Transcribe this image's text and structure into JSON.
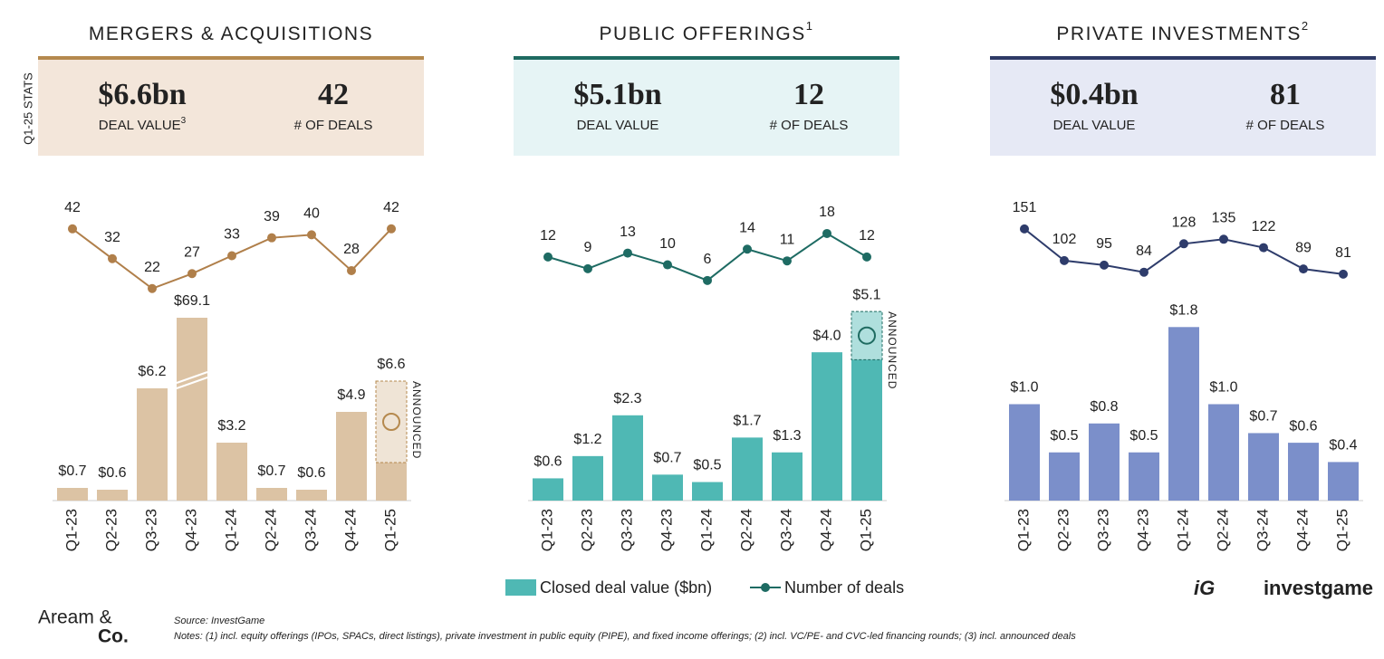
{
  "side_label": "Q1-25 STATS",
  "panels": [
    {
      "title": "MERGERS & ACQUISITIONS",
      "rule_color": "#b5894e",
      "box_color": "#f3e6da",
      "stats": {
        "value": "$6.6bn",
        "value_label": "DEAL VALUE",
        "value_note": "3",
        "deals": "42",
        "deals_label": "# OF DEALS"
      }
    },
    {
      "title": "PUBLIC OFFERINGS",
      "note": "1",
      "rule_color": "#1f6b61",
      "box_color": "#e6f4f5",
      "stats": {
        "value": "$5.1bn",
        "value_label": "DEAL VALUE",
        "deals": "12",
        "deals_label": "# OF DEALS"
      }
    },
    {
      "title": "PRIVATE INVESTMENTS",
      "note": "2",
      "rule_color": "#2e3a66",
      "box_color": "#e6e9f5",
      "stats": {
        "value": "$0.4bn",
        "value_label": "DEAL VALUE",
        "deals": "81",
        "deals_label": "# OF DEALS"
      }
    }
  ],
  "chart_data": [
    {
      "type": "combo",
      "categories": [
        "Q1-23",
        "Q2-23",
        "Q3-23",
        "Q4-23",
        "Q1-24",
        "Q2-24",
        "Q3-24",
        "Q4-24",
        "Q1-25"
      ],
      "series": [
        {
          "type": "bar",
          "color": "#dcc3a4",
          "values": [
            0.7,
            0.6,
            6.2,
            69.1,
            3.2,
            0.7,
            0.6,
            4.9,
            6.6
          ],
          "value_labels": [
            "$0.7",
            "$0.6",
            "$6.2",
            "$69.1",
            "$3.2",
            "$0.7",
            "$0.6",
            "$4.9",
            "$6.6"
          ]
        },
        {
          "type": "line",
          "axis": "y2",
          "color": "#b07f4a",
          "values": [
            42,
            32,
            22,
            27,
            33,
            39,
            40,
            28,
            42
          ]
        }
      ],
      "announced": {
        "label": "ANNOUNCED",
        "color": "#b5894e",
        "values": [
          null,
          null,
          null,
          null,
          null,
          null,
          null,
          null,
          4.5
        ]
      },
      "ylim": [
        0,
        69.65
      ],
      "ybreak": [
        6.5,
        65.5
      ],
      "y2lim": [
        9.5,
        58
      ]
    },
    {
      "type": "combo",
      "categories": [
        "Q1-23",
        "Q2-23",
        "Q3-23",
        "Q4-23",
        "Q1-24",
        "Q2-24",
        "Q3-24",
        "Q4-24",
        "Q1-25"
      ],
      "series": [
        {
          "type": "bar",
          "name": "Closed deal value ($bn)",
          "color": "#4fb8b4",
          "values": [
            0.6,
            1.2,
            2.3,
            0.7,
            0.5,
            1.7,
            1.3,
            4.0,
            5.1
          ],
          "value_labels": [
            "$0.6",
            "$1.2",
            "$2.3",
            "$0.7",
            "$0.5",
            "$1.7",
            "$1.3",
            "$4.0",
            "$5.1"
          ]
        },
        {
          "type": "line",
          "axis": "y2",
          "name": "Number of deals",
          "color": "#1e6b63",
          "values": [
            12,
            9,
            13,
            10,
            6,
            14,
            11,
            18,
            12
          ]
        }
      ],
      "announced": {
        "label": "ANNOUNCED",
        "color": "#1f6b61",
        "values": [
          null,
          null,
          null,
          null,
          null,
          null,
          null,
          null,
          1.3
        ]
      },
      "ylim": [
        0,
        5.2
      ],
      "y2lim": [
        -5.6,
        31.4
      ],
      "legend": "bottom"
    },
    {
      "type": "combo",
      "categories": [
        "Q1-23",
        "Q2-23",
        "Q3-23",
        "Q4-23",
        "Q1-24",
        "Q2-24",
        "Q3-24",
        "Q4-24",
        "Q1-25"
      ],
      "series": [
        {
          "type": "bar",
          "color": "#7b8fca",
          "values": [
            1.0,
            0.5,
            0.8,
            0.5,
            1.8,
            1.0,
            0.7,
            0.6,
            0.4
          ],
          "value_labels": [
            "$1.0",
            "$0.5",
            "$0.8",
            "$0.5",
            "$1.8",
            "$1.0",
            "$0.7",
            "$0.6",
            "$0.4"
          ]
        },
        {
          "type": "line",
          "axis": "y2",
          "color": "#2e3c6b",
          "values": [
            151,
            102,
            95,
            84,
            128,
            135,
            122,
            89,
            81
          ]
        }
      ],
      "ylim": [
        0,
        2.0
      ],
      "y2lim": [
        1,
        225
      ]
    }
  ],
  "footer": {
    "brand_top": "Aream &",
    "brand_bottom": "Co.",
    "source": "Source: InvestGame",
    "notes": "Notes: (1) incl. equity offerings (IPOs, SPACs, direct listings), private investment in public equity (PIPE), and fixed income offerings; (2) incl. VC/PE- and CVC-led financing rounds; (3) incl. announced deals",
    "logo_mark": "iG",
    "logo_text": "investgame"
  }
}
